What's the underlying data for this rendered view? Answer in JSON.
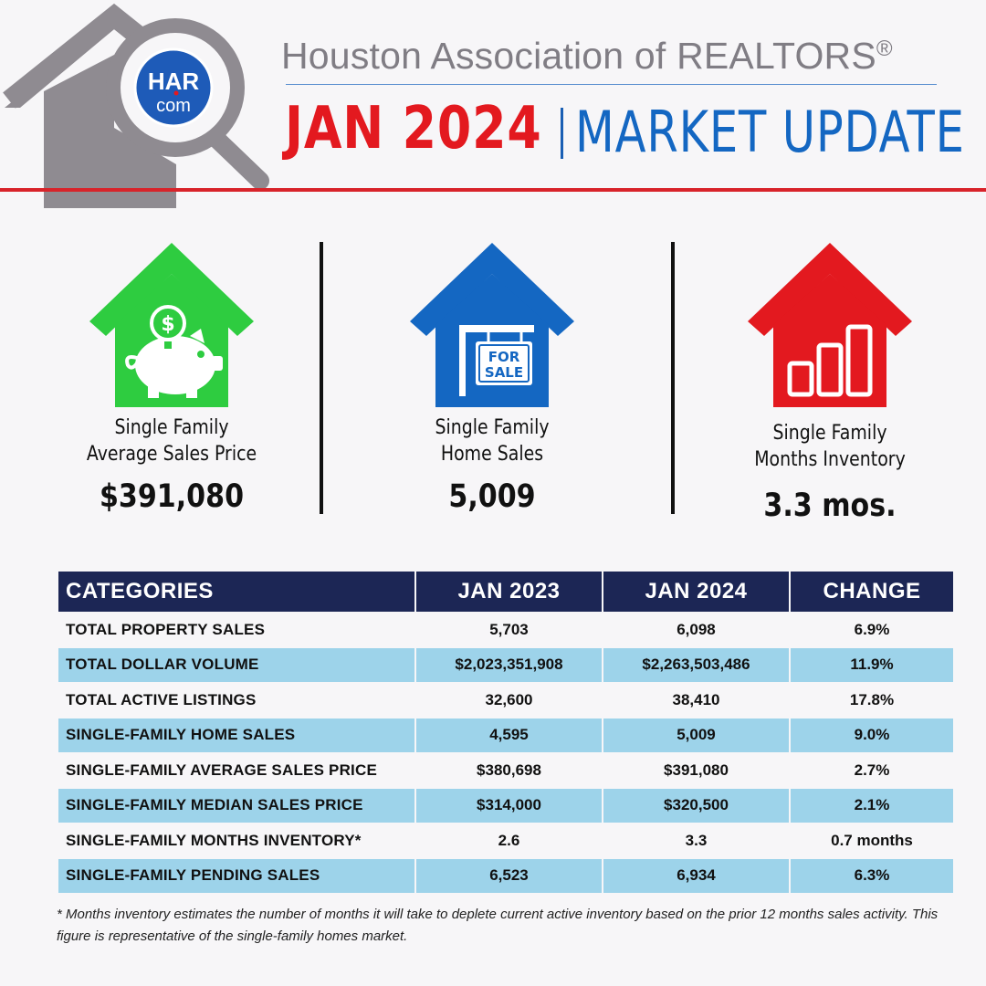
{
  "header": {
    "logo_top": "HAR",
    "logo_bottom": "com",
    "org_name": "Houston Association of REALTORS",
    "org_mark": "®",
    "month": "JAN 2024",
    "title": "MARKET UPDATE"
  },
  "stats": [
    {
      "label_line1": "Single Family",
      "label_line2": "Average Sales Price",
      "value": "$391,080",
      "icon": "piggy-bank-house-icon",
      "color": "#2ecc40"
    },
    {
      "label_line1": "Single Family",
      "label_line2": "Home Sales",
      "value": "5,009",
      "icon": "for-sale-house-icon",
      "color": "#1467c2",
      "sign_line1": "FOR",
      "sign_line2": "SALE"
    },
    {
      "label_line1": "Single Family",
      "label_line2": "Months Inventory",
      "value": "3.3 mos.",
      "icon": "bar-chart-house-icon",
      "color": "#e3191f"
    }
  ],
  "table": {
    "headers": [
      "CATEGORIES",
      "JAN 2023",
      "JAN 2024",
      "CHANGE"
    ],
    "rows": [
      [
        "TOTAL PROPERTY SALES",
        "5,703",
        "6,098",
        "6.9%"
      ],
      [
        "TOTAL DOLLAR VOLUME",
        "$2,023,351,908",
        "$2,263,503,486",
        "11.9%"
      ],
      [
        "TOTAL ACTIVE LISTINGS",
        "32,600",
        "38,410",
        "17.8%"
      ],
      [
        "SINGLE-FAMILY HOME SALES",
        "4,595",
        "5,009",
        "9.0%"
      ],
      [
        "SINGLE-FAMILY AVERAGE SALES PRICE",
        "$380,698",
        "$391,080",
        "2.7%"
      ],
      [
        "SINGLE-FAMILY MEDIAN SALES PRICE",
        "$314,000",
        "$320,500",
        "2.1%"
      ],
      [
        "SINGLE-FAMILY MONTHS INVENTORY*",
        "2.6",
        "3.3",
        "0.7 months"
      ],
      [
        "SINGLE-FAMILY PENDING SALES",
        "6,523",
        "6,934",
        "6.3%"
      ]
    ]
  },
  "footnote": "* Months inventory estimates the number of months it will take to deplete current active inventory based on the prior 12 months sales activity. This figure is representative of the single-family homes market.",
  "colors": {
    "red": "#e3191f",
    "blue": "#1467c2",
    "navy": "#1c2655",
    "row_alt": "#9dd3ea",
    "gray": "#807d84"
  }
}
